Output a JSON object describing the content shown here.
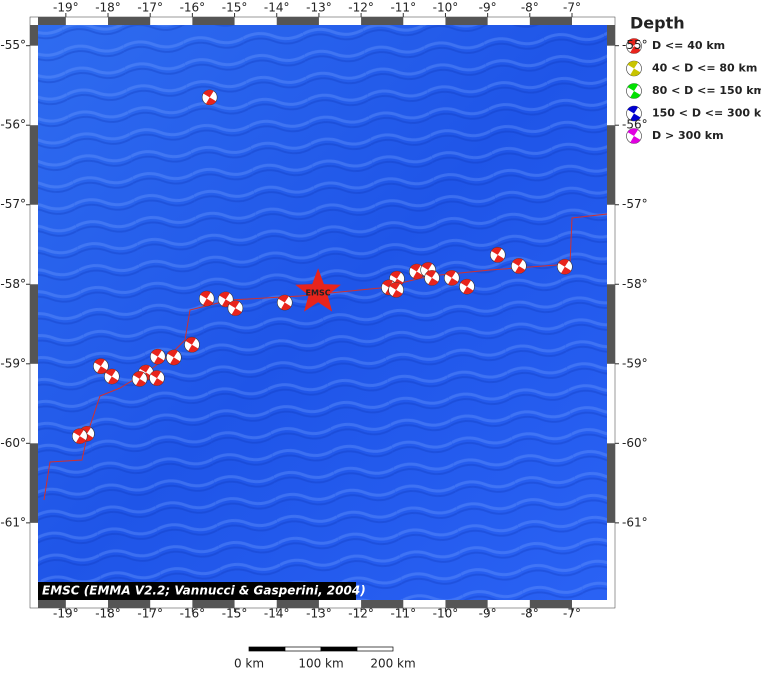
{
  "map": {
    "xlim": [
      -19.66,
      -6.17
    ],
    "ylim": [
      -61.97,
      -54.74
    ],
    "lon_ticks": [
      {
        "value": -19,
        "label": "-19°"
      },
      {
        "value": -18,
        "label": "-18°"
      },
      {
        "value": -17,
        "label": "-17°"
      },
      {
        "value": -16,
        "label": "-16°"
      },
      {
        "value": -15,
        "label": "-15°"
      },
      {
        "value": -14,
        "label": "-14°"
      },
      {
        "value": -13,
        "label": "-13°"
      },
      {
        "value": -12,
        "label": "-12°"
      },
      {
        "value": -11,
        "label": "-11°"
      },
      {
        "value": -10,
        "label": "-10°"
      },
      {
        "value": -9,
        "label": "-9°"
      },
      {
        "value": -8,
        "label": "-8°"
      },
      {
        "value": -7,
        "label": "-7°"
      }
    ],
    "lat_ticks": [
      {
        "value": -55,
        "label": "-55°"
      },
      {
        "value": -56,
        "label": "-56°"
      },
      {
        "value": -57,
        "label": "-57°"
      },
      {
        "value": -58,
        "label": "-58°"
      },
      {
        "value": -59,
        "label": "-59°"
      },
      {
        "value": -60,
        "label": "-60°"
      },
      {
        "value": -61,
        "label": "-61°"
      }
    ],
    "events": [
      {
        "lon": -15.59,
        "lat": -55.65
      },
      {
        "lon": -15.66,
        "lat": -58.18
      },
      {
        "lon": -15.21,
        "lat": -58.19
      },
      {
        "lon": -14.98,
        "lat": -58.3
      },
      {
        "lon": -13.81,
        "lat": -58.23
      },
      {
        "lon": -11.15,
        "lat": -57.93
      },
      {
        "lon": -11.34,
        "lat": -58.04
      },
      {
        "lon": -11.17,
        "lat": -58.07
      },
      {
        "lon": -10.68,
        "lat": -57.84
      },
      {
        "lon": -10.41,
        "lat": -57.82
      },
      {
        "lon": -10.32,
        "lat": -57.92
      },
      {
        "lon": -9.85,
        "lat": -57.92
      },
      {
        "lon": -9.49,
        "lat": -58.03
      },
      {
        "lon": -8.76,
        "lat": -57.63
      },
      {
        "lon": -8.26,
        "lat": -57.77
      },
      {
        "lon": -7.17,
        "lat": -57.78
      },
      {
        "lon": -16.01,
        "lat": -58.76
      },
      {
        "lon": -16.82,
        "lat": -58.91
      },
      {
        "lon": -16.44,
        "lat": -58.92
      },
      {
        "lon": -17.1,
        "lat": -59.11
      },
      {
        "lon": -16.84,
        "lat": -59.18
      },
      {
        "lon": -17.25,
        "lat": -59.19
      },
      {
        "lon": -18.17,
        "lat": -59.03
      },
      {
        "lon": -17.91,
        "lat": -59.16
      },
      {
        "lon": -18.5,
        "lat": -59.88
      },
      {
        "lon": -18.67,
        "lat": -59.91
      }
    ],
    "event_color": "#e8241c",
    "epicenter": {
      "lon": -13.02,
      "lat": -58.1,
      "label": "EMSC",
      "color": "#e8241c"
    }
  },
  "legend": {
    "title": "Depth",
    "items": [
      {
        "label": "D <= 40 km",
        "color": "#e8241c"
      },
      {
        "label": "40 < D <= 80 km",
        "color": "#c8c400"
      },
      {
        "label": "80 < D <= 150 km",
        "color": "#00e000"
      },
      {
        "label": "150 < D <= 300 km",
        "color": "#0000d0"
      },
      {
        "label": "D > 300 km",
        "color": "#e000e0"
      }
    ]
  },
  "credit": "EMSC (EMMA V2.2; Vannucci & Gasperini, 2004)",
  "scale_bar": {
    "labels": [
      "0 km",
      "100 km",
      "200 km"
    ]
  }
}
